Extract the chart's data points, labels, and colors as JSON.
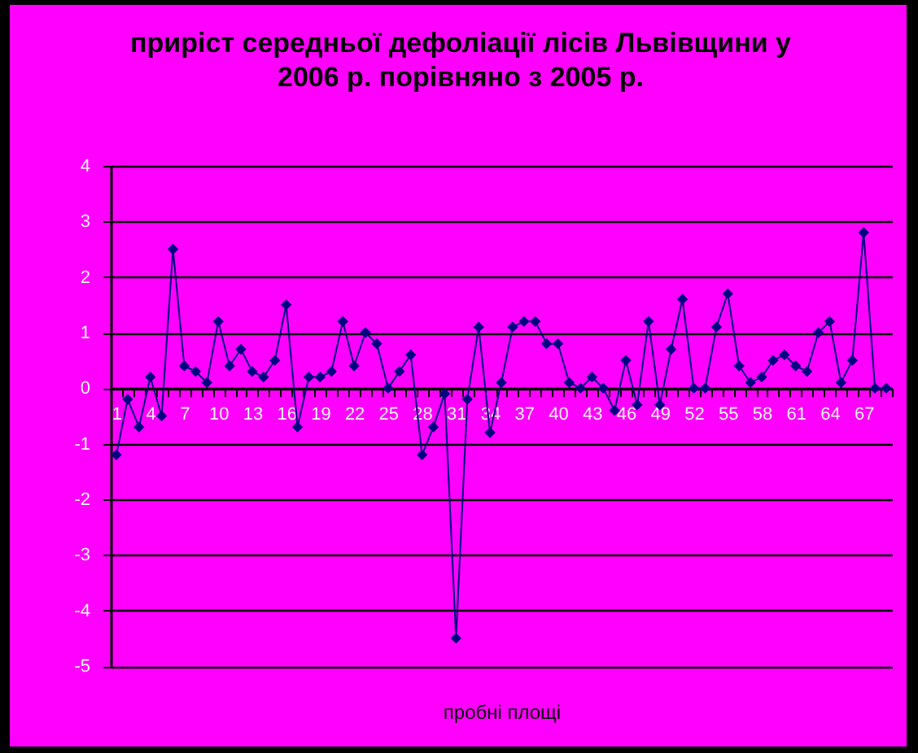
{
  "chart_data": {
    "type": "line",
    "title": "приріст середньої дефоліації лісів Львівщини у 2006 р. порівняно з 2005 р.",
    "xlabel": "пробні площі",
    "categories": [
      "1",
      null,
      null,
      "4",
      null,
      null,
      "7",
      null,
      null,
      "10",
      null,
      null,
      "13",
      null,
      null,
      "16",
      null,
      null,
      "19",
      null,
      null,
      "22",
      null,
      null,
      "25",
      null,
      null,
      "28",
      null,
      null,
      "31",
      null,
      null,
      "34",
      null,
      null,
      "37",
      null,
      null,
      "40",
      null,
      null,
      "43",
      null,
      null,
      "46",
      null,
      null,
      "49",
      null,
      null,
      "52",
      null,
      null,
      "55",
      null,
      null,
      "58",
      null,
      null,
      "61",
      null,
      null,
      "64",
      null,
      null,
      "67",
      null,
      null
    ],
    "values": [
      -1.2,
      -0.2,
      -0.7,
      0.2,
      -0.5,
      2.5,
      0.4,
      0.3,
      0.1,
      1.2,
      0.4,
      0.7,
      0.3,
      0.2,
      0.5,
      1.5,
      -0.7,
      0.2,
      0.2,
      0.3,
      1.2,
      0.4,
      1.0,
      0.8,
      0.0,
      0.3,
      0.6,
      -1.2,
      -0.7,
      -0.1,
      -4.5,
      -0.2,
      1.1,
      -0.8,
      0.1,
      1.1,
      1.2,
      1.2,
      0.8,
      0.8,
      0.1,
      0.0,
      0.2,
      0.0,
      -0.4,
      0.5,
      -0.3,
      1.2,
      -0.3,
      0.7,
      1.6,
      0.0,
      0.0,
      1.1,
      1.7,
      0.4,
      0.1,
      0.2,
      0.5,
      0.6,
      0.4,
      0.3,
      1.0,
      1.2,
      0.1,
      0.5,
      2.8,
      0.0,
      0.0
    ],
    "color": "#000080",
    "ylim": [
      -5,
      4
    ],
    "yticks": [
      -5,
      -4,
      -3,
      -2,
      -1,
      0,
      1,
      2,
      3,
      4
    ],
    "grid": "y",
    "marker": "diamond",
    "line_style": "solid"
  }
}
